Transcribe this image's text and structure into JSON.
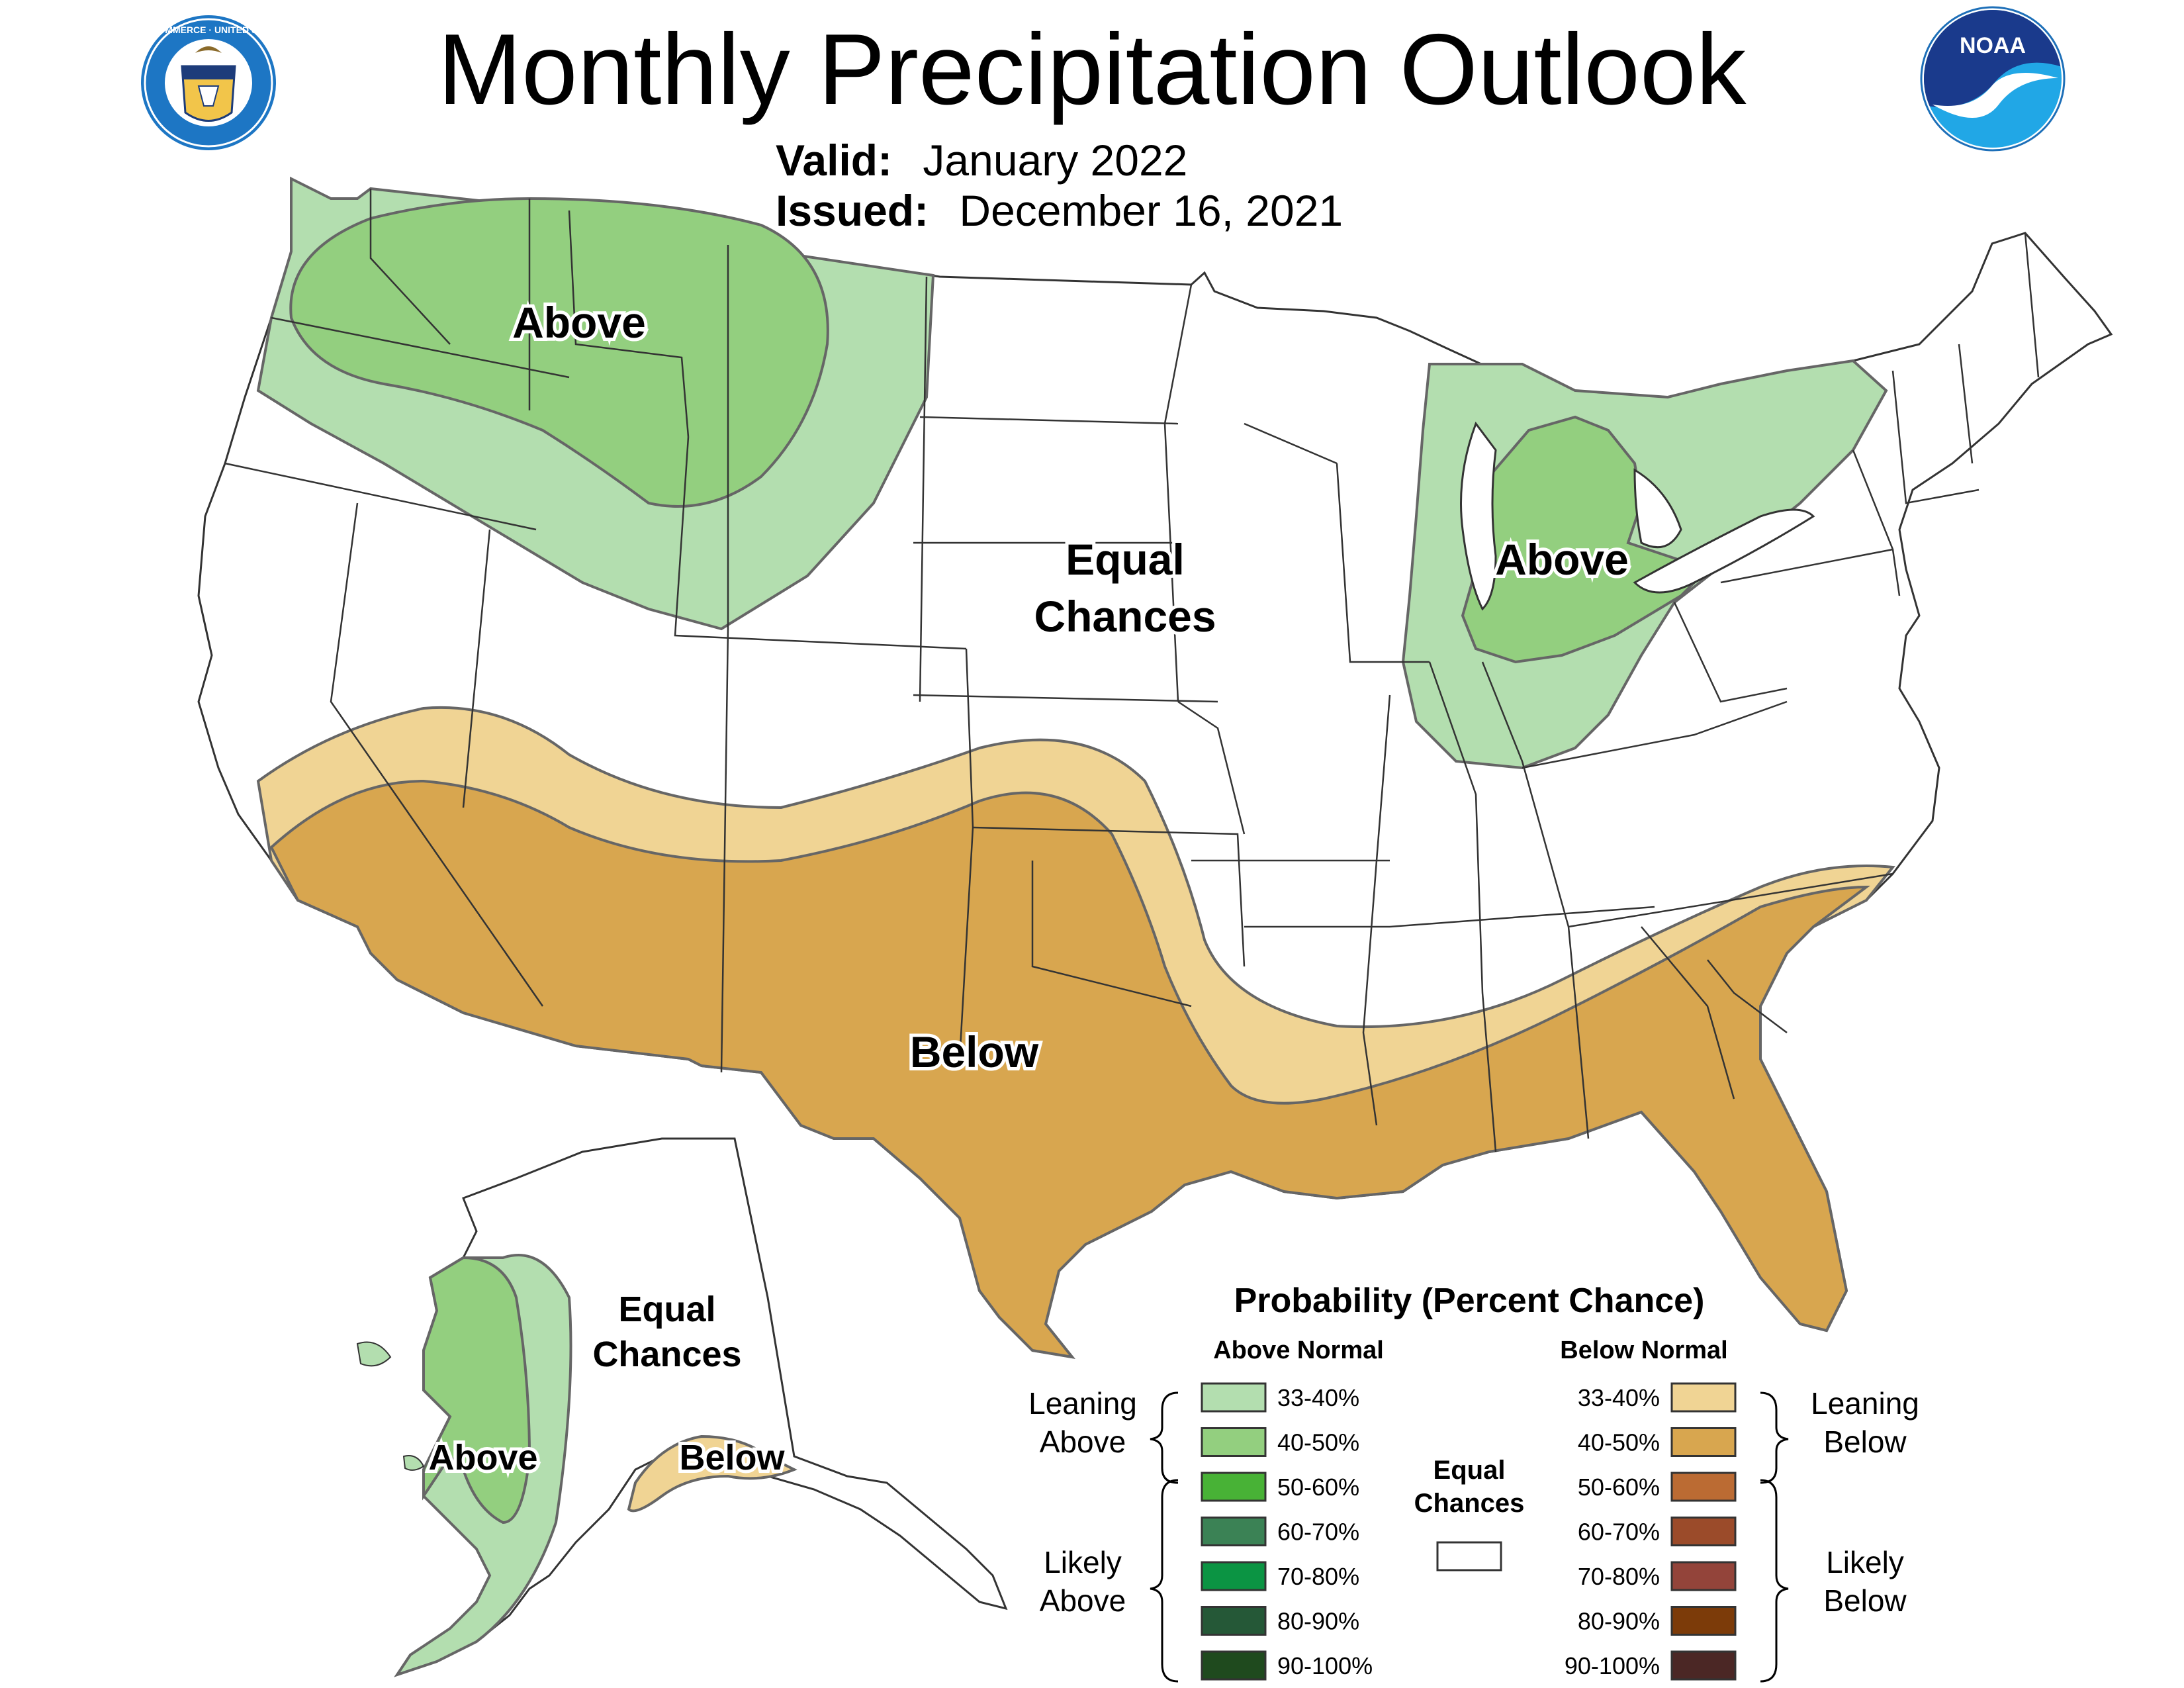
{
  "header": {
    "title": "Monthly Precipitation Outlook",
    "valid_label": "Valid:",
    "valid_value": "January 2022",
    "issued_label": "Issued:",
    "issued_value": "December 16, 2021"
  },
  "logos": {
    "commerce_seal_text": "DEPARTMENT OF COMMERCE · UNITED STATES OF AMERICA",
    "noaa_text": "NOAA"
  },
  "map_labels": {
    "conus_nw_above": "Above",
    "conus_central_ec_1": "Equal",
    "conus_central_ec_2": "Chances",
    "conus_greatlakes_above": "Above",
    "conus_south_below": "Below",
    "alaska_ec_1": "Equal",
    "alaska_ec_2": "Chances",
    "alaska_west_above": "Above",
    "alaska_south_below": "Below"
  },
  "legend": {
    "title": "Probability (Percent Chance)",
    "above_header": "Above Normal",
    "below_header": "Below Normal",
    "leaning_above_1": "Leaning",
    "leaning_above_2": "Above",
    "likely_above_1": "Likely",
    "likely_above_2": "Above",
    "leaning_below_1": "Leaning",
    "leaning_below_2": "Below",
    "likely_below_1": "Likely",
    "likely_below_2": "Below",
    "equal_1": "Equal",
    "equal_2": "Chances",
    "above": [
      {
        "range": "33-40%",
        "color": "#b3deaf"
      },
      {
        "range": "40-50%",
        "color": "#93cf7f"
      },
      {
        "range": "50-60%",
        "color": "#48b236"
      },
      {
        "range": "60-70%",
        "color": "#3b8255"
      },
      {
        "range": "70-80%",
        "color": "#0b9443"
      },
      {
        "range": "80-90%",
        "color": "#255837"
      },
      {
        "range": "90-100%",
        "color": "#1f4a1e"
      }
    ],
    "below": [
      {
        "range": "33-40%",
        "color": "#f0d494"
      },
      {
        "range": "40-50%",
        "color": "#d8a64f"
      },
      {
        "range": "50-60%",
        "color": "#bb6b33"
      },
      {
        "range": "60-70%",
        "color": "#9b4b2a"
      },
      {
        "range": "70-80%",
        "color": "#93443a"
      },
      {
        "range": "80-90%",
        "color": "#7c3b09"
      },
      {
        "range": "90-100%",
        "color": "#4b2725"
      }
    ],
    "equal_color": "#ffffff"
  },
  "colors": {
    "above_33_40": "#b3deaf",
    "above_40_50": "#93cf7f",
    "below_33_40": "#f0d494",
    "below_40_50": "#d8a64f",
    "state_border": "#333333",
    "contour": "#666666"
  }
}
